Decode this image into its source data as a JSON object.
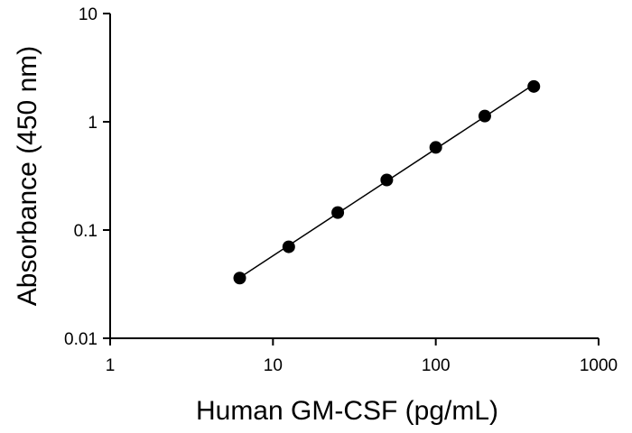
{
  "chart_data": {
    "type": "scatter",
    "title": "",
    "xlabel": "Human GM-CSF (pg/mL)",
    "ylabel": "Absorbance (450 nm)",
    "xscale": "log",
    "yscale": "log",
    "xlim": [
      1,
      1000
    ],
    "ylim": [
      0.01,
      10
    ],
    "xticks": [
      1,
      10,
      100,
      1000
    ],
    "xtick_labels": [
      "1",
      "10",
      "100",
      "1000"
    ],
    "yticks": [
      0.01,
      0.1,
      1,
      10
    ],
    "ytick_labels": [
      "0.01",
      "0.1",
      "1",
      "10"
    ],
    "grid": false,
    "series": [
      {
        "x": [
          6.25,
          12.5,
          25,
          50,
          100,
          200,
          400
        ],
        "y": [
          0.036,
          0.07,
          0.145,
          0.29,
          0.58,
          1.13,
          2.12
        ],
        "marker": "circle",
        "color": "#000000",
        "fit_line": true
      }
    ]
  }
}
